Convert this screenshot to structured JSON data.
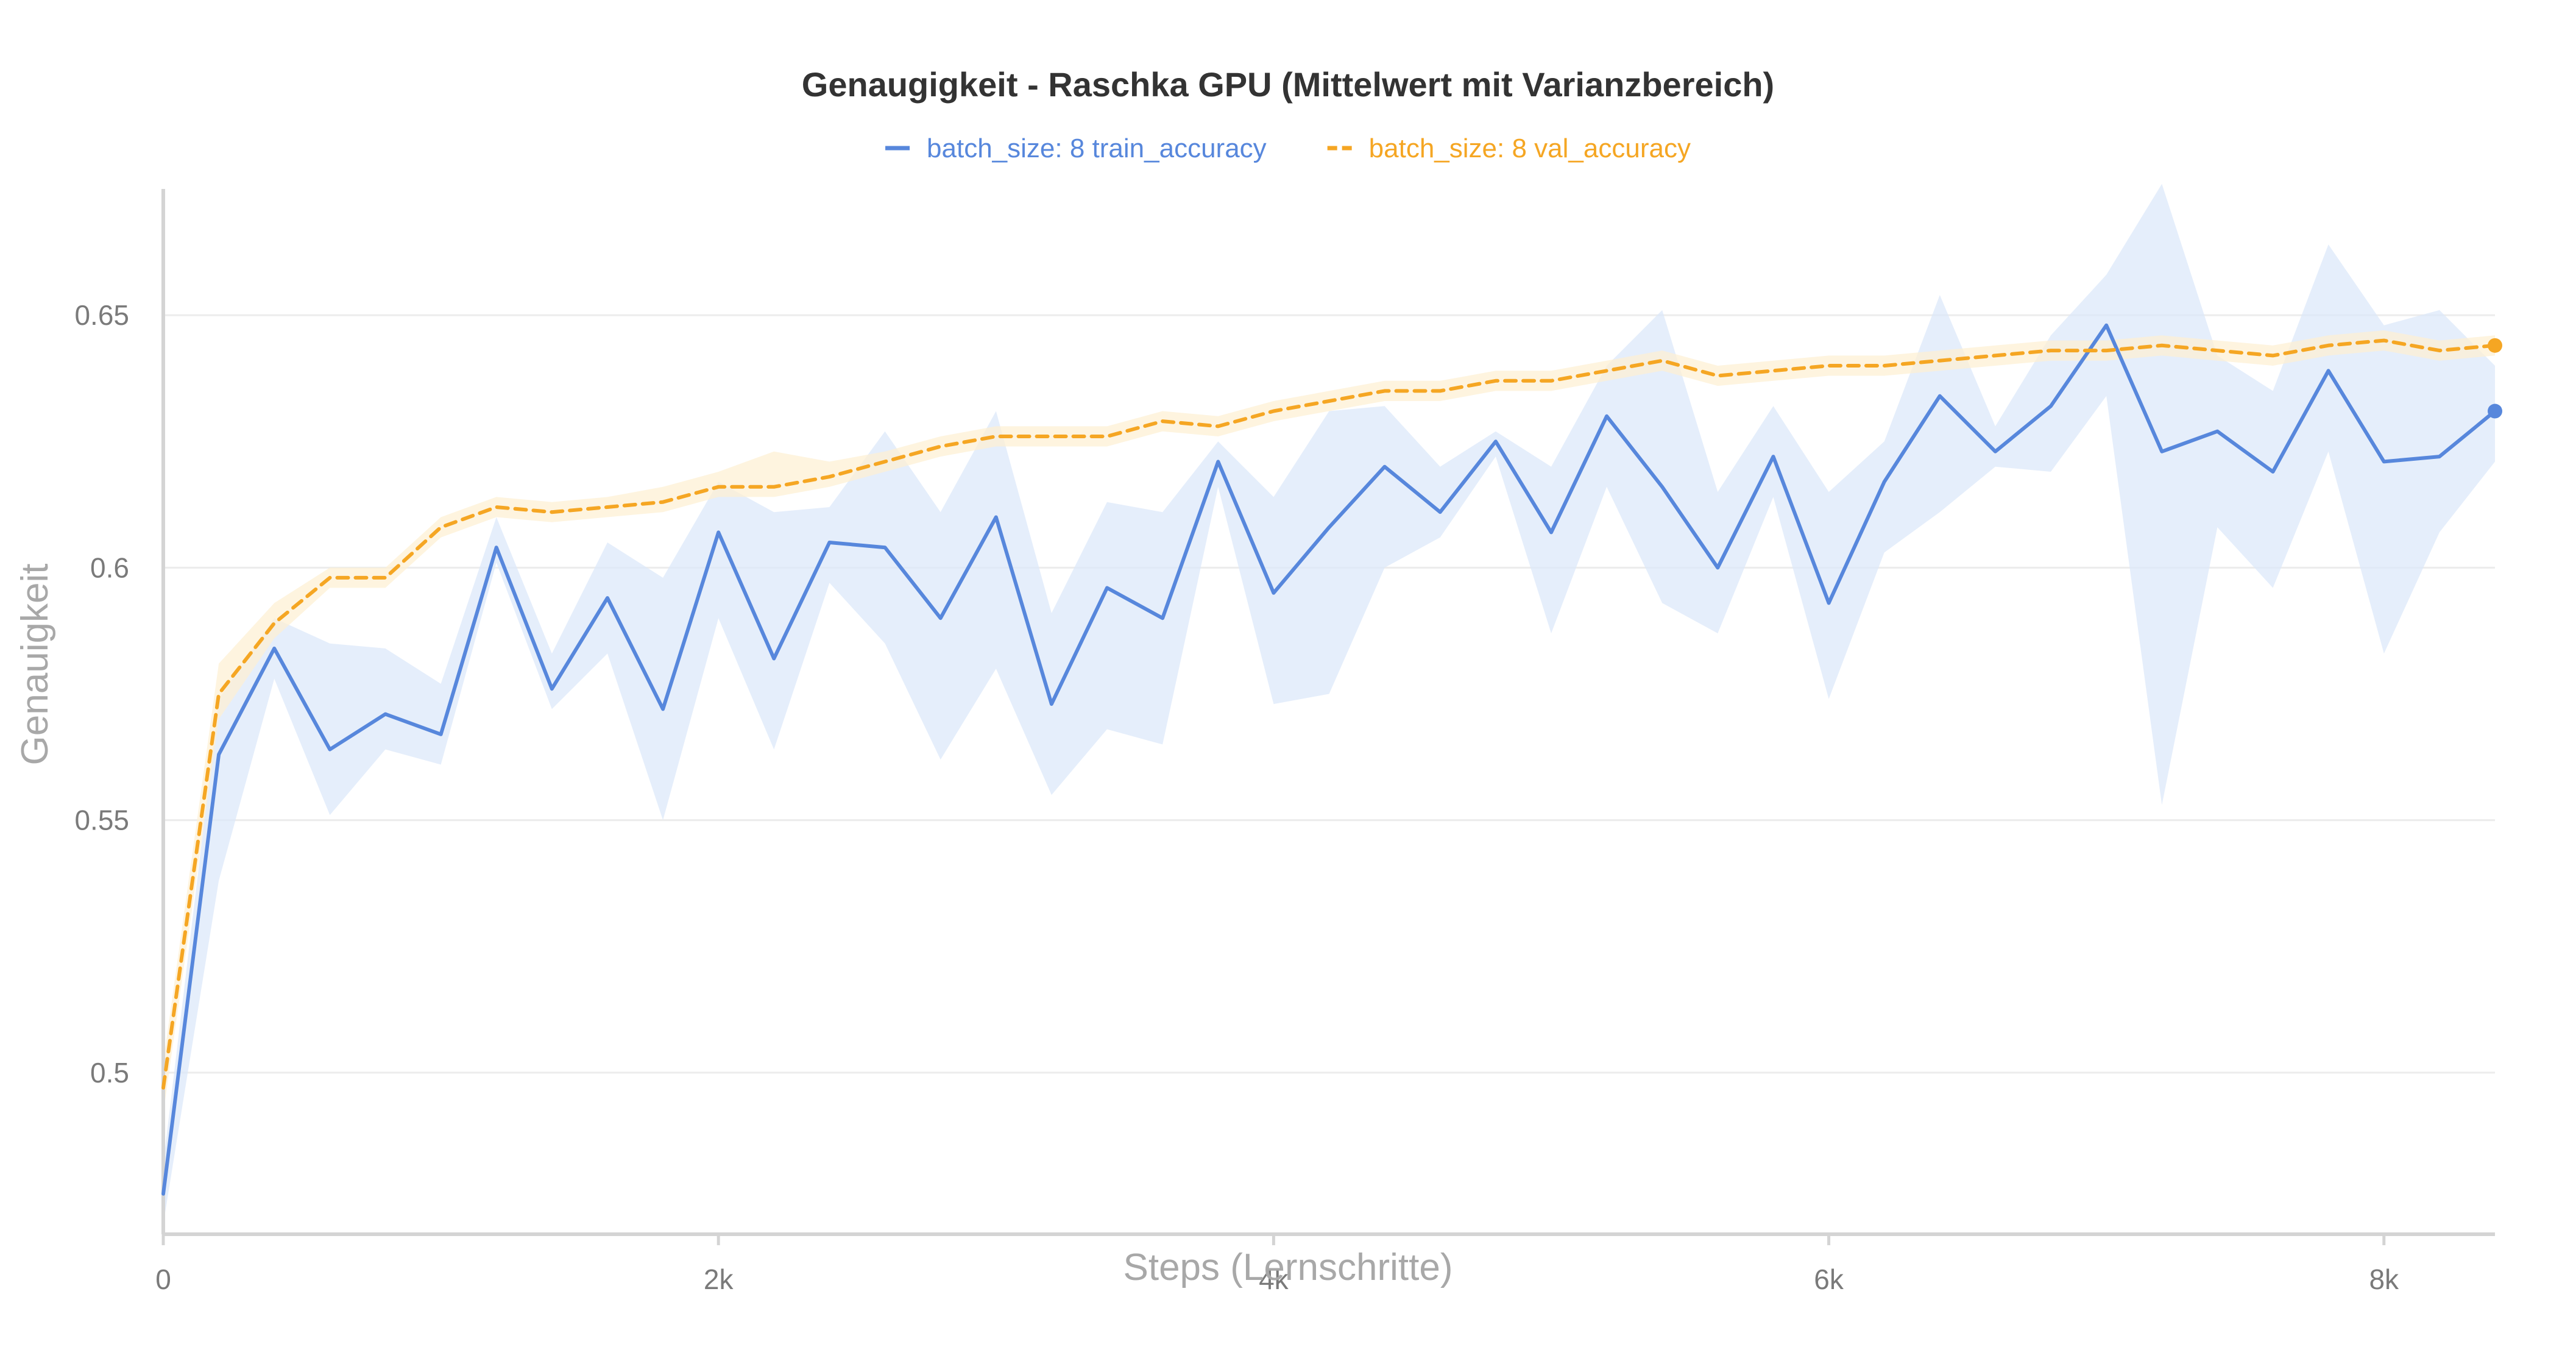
{
  "chart_data": {
    "type": "line",
    "title": "Genaugigkeit - Raschka GPU (Mittelwert mit Varianzbereich)",
    "xlabel": "Steps (Lernschritte)",
    "ylabel": "Genauigkeit",
    "xlim": [
      0,
      8400
    ],
    "ylim": [
      0.468,
      0.675
    ],
    "x_ticks": [
      {
        "value": 0,
        "label": "0"
      },
      {
        "value": 2000,
        "label": "2k"
      },
      {
        "value": 4000,
        "label": "4k"
      },
      {
        "value": 6000,
        "label": "6k"
      },
      {
        "value": 8000,
        "label": "8k"
      }
    ],
    "y_ticks": [
      {
        "value": 0.5,
        "label": "0.5"
      },
      {
        "value": 0.55,
        "label": "0.55"
      },
      {
        "value": 0.6,
        "label": "0.6"
      },
      {
        "value": 0.65,
        "label": "0.65"
      }
    ],
    "grid": true,
    "legend_position": "top-center",
    "series": [
      {
        "name": "batch_size: 8 train_accuracy",
        "color": "#5787dc",
        "band_color": "#dbe7f9",
        "line_style": "solid",
        "x": [
          0,
          200,
          400,
          600,
          800,
          1000,
          1200,
          1400,
          1600,
          1800,
          2000,
          2200,
          2400,
          2600,
          2800,
          3000,
          3200,
          3400,
          3600,
          3800,
          4000,
          4200,
          4400,
          4600,
          4800,
          5000,
          5200,
          5400,
          5600,
          5800,
          6000,
          6200,
          6400,
          6600,
          6800,
          7000,
          7200,
          7400,
          7600,
          7800,
          8000,
          8200,
          8400
        ],
        "y": [
          0.476,
          0.563,
          0.584,
          0.564,
          0.571,
          0.567,
          0.604,
          0.576,
          0.594,
          0.572,
          0.607,
          0.582,
          0.605,
          0.604,
          0.59,
          0.61,
          0.573,
          0.596,
          0.59,
          0.621,
          0.595,
          0.608,
          0.62,
          0.611,
          0.625,
          0.607,
          0.63,
          0.616,
          0.6,
          0.622,
          0.593,
          0.617,
          0.634,
          0.623,
          0.632,
          0.648,
          0.623,
          0.627,
          0.619,
          0.639,
          0.621,
          0.622,
          0.631
        ],
        "lower": [
          0.47,
          0.538,
          0.578,
          0.551,
          0.564,
          0.561,
          0.601,
          0.572,
          0.583,
          0.55,
          0.59,
          0.564,
          0.597,
          0.585,
          0.562,
          0.58,
          0.555,
          0.568,
          0.565,
          0.616,
          0.573,
          0.575,
          0.6,
          0.606,
          0.622,
          0.587,
          0.616,
          0.593,
          0.587,
          0.614,
          0.574,
          0.603,
          0.611,
          0.62,
          0.619,
          0.634,
          0.553,
          0.608,
          0.596,
          0.623,
          0.583,
          0.607,
          0.621
        ],
        "upper": [
          0.482,
          0.574,
          0.59,
          0.585,
          0.584,
          0.577,
          0.61,
          0.583,
          0.605,
          0.598,
          0.617,
          0.611,
          0.612,
          0.627,
          0.611,
          0.631,
          0.591,
          0.613,
          0.611,
          0.625,
          0.614,
          0.631,
          0.632,
          0.62,
          0.627,
          0.62,
          0.64,
          0.651,
          0.615,
          0.632,
          0.615,
          0.625,
          0.654,
          0.628,
          0.646,
          0.658,
          0.676,
          0.642,
          0.635,
          0.664,
          0.648,
          0.651,
          0.64
        ]
      },
      {
        "name": "batch_size: 8 val_accuracy",
        "color": "#f5a623",
        "band_color": "#fdf0d2",
        "line_style": "dashed",
        "x": [
          0,
          200,
          400,
          600,
          800,
          1000,
          1200,
          1400,
          1600,
          1800,
          2000,
          2200,
          2400,
          2600,
          2800,
          3000,
          3200,
          3400,
          3600,
          3800,
          4000,
          4200,
          4400,
          4600,
          4800,
          5000,
          5200,
          5400,
          5600,
          5800,
          6000,
          6200,
          6400,
          6600,
          6800,
          7000,
          7200,
          7400,
          7600,
          7800,
          8000,
          8200,
          8400
        ],
        "y": [
          0.497,
          0.575,
          0.589,
          0.598,
          0.598,
          0.608,
          0.612,
          0.611,
          0.612,
          0.613,
          0.616,
          0.616,
          0.618,
          0.621,
          0.624,
          0.626,
          0.626,
          0.626,
          0.629,
          0.628,
          0.631,
          0.633,
          0.635,
          0.635,
          0.637,
          0.637,
          0.639,
          0.641,
          0.638,
          0.639,
          0.64,
          0.64,
          0.641,
          0.642,
          0.643,
          0.643,
          0.644,
          0.643,
          0.642,
          0.644,
          0.645,
          0.643,
          0.644
        ],
        "lower": [
          0.492,
          0.57,
          0.586,
          0.596,
          0.596,
          0.606,
          0.61,
          0.609,
          0.61,
          0.611,
          0.614,
          0.614,
          0.616,
          0.619,
          0.622,
          0.624,
          0.624,
          0.624,
          0.627,
          0.626,
          0.629,
          0.631,
          0.633,
          0.633,
          0.635,
          0.635,
          0.637,
          0.639,
          0.636,
          0.637,
          0.638,
          0.638,
          0.639,
          0.64,
          0.641,
          0.641,
          0.642,
          0.641,
          0.64,
          0.642,
          0.643,
          0.641,
          0.642
        ],
        "upper": [
          0.502,
          0.581,
          0.593,
          0.6,
          0.6,
          0.61,
          0.614,
          0.613,
          0.614,
          0.616,
          0.619,
          0.623,
          0.621,
          0.623,
          0.626,
          0.628,
          0.628,
          0.628,
          0.631,
          0.63,
          0.633,
          0.635,
          0.637,
          0.637,
          0.639,
          0.639,
          0.641,
          0.643,
          0.64,
          0.641,
          0.642,
          0.642,
          0.643,
          0.644,
          0.645,
          0.645,
          0.646,
          0.645,
          0.644,
          0.646,
          0.647,
          0.645,
          0.646
        ]
      }
    ]
  }
}
